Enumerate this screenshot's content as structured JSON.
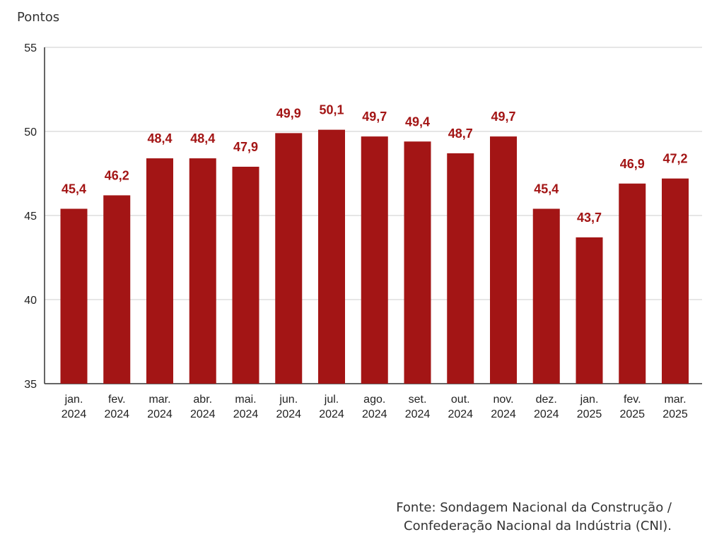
{
  "chart_data": {
    "type": "bar",
    "ylabel": "Pontos",
    "xlabel": "",
    "ylim": [
      35,
      55
    ],
    "yticks": [
      "35",
      "40",
      "45",
      "50",
      "55"
    ],
    "ytick_values": [
      35,
      40,
      45,
      50,
      55
    ],
    "grid": true,
    "bar_color": "#a31515",
    "label_color": "#a31515",
    "categories": [
      [
        "jan.",
        "2024"
      ],
      [
        "fev.",
        "2024"
      ],
      [
        "mar.",
        "2024"
      ],
      [
        "abr.",
        "2024"
      ],
      [
        "mai.",
        "2024"
      ],
      [
        "jun.",
        "2024"
      ],
      [
        "jul.",
        "2024"
      ],
      [
        "ago.",
        "2024"
      ],
      [
        "set.",
        "2024"
      ],
      [
        "out.",
        "2024"
      ],
      [
        "nov.",
        "2024"
      ],
      [
        "dez.",
        "2024"
      ],
      [
        "jan.",
        "2025"
      ],
      [
        "fev.",
        "2025"
      ],
      [
        "mar.",
        "2025"
      ]
    ],
    "values": [
      45.4,
      46.2,
      48.4,
      48.4,
      47.9,
      49.9,
      50.1,
      49.7,
      49.4,
      48.7,
      49.7,
      45.4,
      43.7,
      46.9,
      47.2
    ],
    "value_labels": [
      "45,4",
      "46,2",
      "48,4",
      "48,4",
      "47,9",
      "49,9",
      "50,1",
      "49,7",
      "49,4",
      "48,7",
      "49,7",
      "45,4",
      "43,7",
      "46,9",
      "47,2"
    ]
  },
  "source": {
    "line1": "Fonte: Sondagem Nacional da Construção /",
    "line2": "Confederação Nacional da Indústria (CNI)."
  }
}
